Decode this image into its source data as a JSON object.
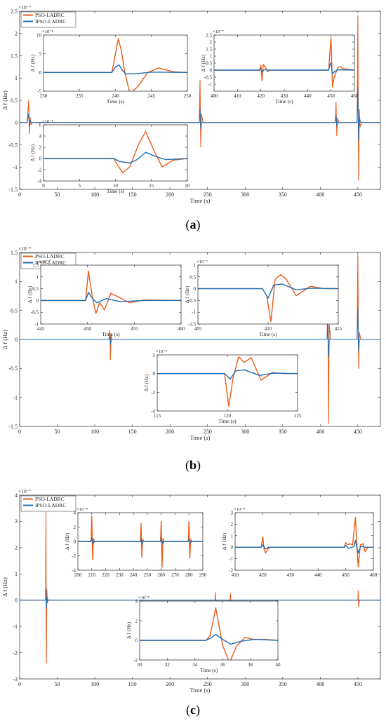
{
  "colors": {
    "pso": "#EA5B1A",
    "ipso": "#1F6FB5",
    "axis": "#262626",
    "bg": "#ffffff"
  },
  "legend_series": [
    "PSO-LADRC",
    "IPSO-LADRC"
  ],
  "chart_data": [
    {
      "id": "a-main",
      "type": "line",
      "caption": "(a)",
      "xlabel": "Time (s)",
      "ylabel": "Δ f (Hz)",
      "yexp": "×10⁻⁷",
      "xlim": [
        0,
        480
      ],
      "ylim": [
        -1.5,
        2.5
      ],
      "xticks": [
        0,
        50,
        100,
        150,
        200,
        250,
        300,
        350,
        400,
        450
      ],
      "yticks": [
        -1.5,
        -1,
        -0.5,
        0,
        0.5,
        1,
        1.5,
        2,
        2.5
      ],
      "legend": "top-left",
      "series": [
        {
          "name": "PSO-LADRC",
          "x": [
            0,
            10,
            12,
            13,
            14,
            15,
            17,
            239,
            240,
            241,
            242,
            244,
            420,
            421,
            422,
            423,
            425,
            449,
            450,
            451,
            452,
            453,
            455,
            480
          ],
          "y": [
            0,
            0,
            0.5,
            -0.25,
            0.12,
            -0.05,
            0,
            0,
            0.95,
            -0.55,
            0.2,
            0,
            0,
            0.45,
            -0.3,
            0.1,
            0,
            0,
            2.4,
            -1.3,
            0.3,
            -0.1,
            0,
            0
          ]
        },
        {
          "name": "IPSO-LADRC",
          "x": [
            0,
            10,
            12,
            13,
            14,
            16,
            239,
            240,
            241,
            242,
            420,
            421,
            422,
            423,
            449,
            450,
            451,
            452,
            454,
            480
          ],
          "y": [
            0,
            0,
            0.2,
            -0.1,
            0.05,
            0,
            0,
            0.3,
            -0.15,
            0,
            0,
            0.15,
            -0.08,
            0,
            0,
            0.8,
            -0.4,
            0.1,
            0,
            0
          ]
        }
      ]
    },
    {
      "id": "a-inset1",
      "type": "line",
      "xlabel": "Time (s)",
      "ylabel": "Δ f (Hz)",
      "yexp": "×10⁻⁸",
      "xlim": [
        230,
        250
      ],
      "ylim": [
        -5,
        10
      ],
      "xticks": [
        230,
        235,
        240,
        245,
        250
      ],
      "yticks": [
        -5,
        0,
        5,
        10
      ],
      "series": [
        {
          "name": "PSO-LADRC",
          "x": [
            230,
            239.5,
            240,
            240.4,
            240.8,
            241.3,
            242,
            243,
            244.5,
            246,
            248,
            250
          ],
          "y": [
            0,
            0,
            5,
            9,
            6,
            0,
            -5.5,
            -4,
            0,
            1.2,
            0.2,
            0
          ]
        },
        {
          "name": "IPSO-LADRC",
          "x": [
            230,
            239.5,
            240,
            240.5,
            241,
            241.5,
            243,
            245,
            250
          ],
          "y": [
            0,
            0,
            1.5,
            2,
            0.5,
            -0.4,
            -0.3,
            0.1,
            0
          ]
        }
      ]
    },
    {
      "id": "a-inset2",
      "type": "line",
      "xlabel": "Time (s)",
      "ylabel": "Δ f (Hz)",
      "yexp": "×10⁻⁷",
      "xlim": [
        400,
        460
      ],
      "ylim": [
        -1.5,
        2.5
      ],
      "xticks": [
        400,
        410,
        420,
        430,
        440,
        450,
        460
      ],
      "yticks": [
        -1,
        -0.5,
        0,
        0.5,
        1,
        1.5,
        2,
        2.5
      ],
      "series": [
        {
          "name": "PSO-LADRC",
          "x": [
            400,
            419.5,
            420,
            420.5,
            421,
            422,
            423,
            424,
            449,
            449.5,
            450,
            450.6,
            451.2,
            452,
            453,
            454,
            455,
            460
          ],
          "y": [
            0,
            0,
            0.35,
            -0.75,
            0.4,
            0.2,
            -0.1,
            0,
            0,
            1.2,
            2.3,
            -1.2,
            -0.6,
            -0.2,
            0.2,
            0.25,
            0.1,
            0
          ]
        },
        {
          "name": "IPSO-LADRC",
          "x": [
            400,
            419.5,
            420,
            420.5,
            421.5,
            422.5,
            449,
            449.5,
            450,
            450.6,
            451.5,
            453,
            460
          ],
          "y": [
            0,
            0,
            0.1,
            -0.15,
            0.05,
            0,
            0,
            0.4,
            0.5,
            -0.25,
            -0.1,
            0.02,
            0
          ]
        }
      ]
    },
    {
      "id": "a-inset3",
      "type": "line",
      "xlabel": "Time (s)",
      "ylabel": "Δ f (Hz)",
      "yexp": "×10⁻⁸",
      "xlim": [
        0,
        20
      ],
      "ylim": [
        -4,
        6
      ],
      "xticks": [
        0,
        5,
        10,
        15,
        20
      ],
      "yticks": [
        -4,
        -2,
        0,
        2,
        4,
        6
      ],
      "series": [
        {
          "name": "PSO-LADRC",
          "x": [
            0,
            9.8,
            10.2,
            11,
            12,
            13.2,
            14.2,
            15.5,
            16.5,
            18,
            20
          ],
          "y": [
            0,
            0,
            -1,
            -2.5,
            -1.5,
            2.5,
            4.8,
            1,
            -1.5,
            -0.3,
            0
          ]
        },
        {
          "name": "IPSO-LADRC",
          "x": [
            0,
            9.8,
            10.5,
            12,
            13,
            14.2,
            15.5,
            17,
            20
          ],
          "y": [
            0,
            0,
            -0.5,
            -0.8,
            -0.2,
            1.1,
            0.4,
            -0.2,
            0
          ]
        }
      ]
    },
    {
      "id": "b-main",
      "type": "line",
      "caption": "(b)",
      "xlabel": "Time (s)",
      "ylabel": "Δ f (Hz)",
      "yexp": "×10⁻⁷",
      "xlim": [
        0,
        480
      ],
      "ylim": [
        -1.5,
        1.5
      ],
      "xticks": [
        0,
        50,
        100,
        150,
        200,
        250,
        300,
        350,
        400,
        450
      ],
      "yticks": [
        -1.5,
        -1,
        -0.5,
        0,
        0.5,
        1,
        1.5
      ],
      "legend": "top-left",
      "series": [
        {
          "name": "PSO-LADRC",
          "x": [
            0,
            119,
            120,
            120.8,
            121.5,
            123,
            409,
            410,
            411,
            412,
            414,
            449,
            450,
            451,
            452,
            454,
            480
          ],
          "y": [
            0,
            0,
            0.15,
            -0.35,
            0.1,
            0,
            0,
            0.75,
            -1.45,
            0.25,
            0,
            0,
            1.45,
            -0.5,
            0.12,
            0,
            0
          ]
        },
        {
          "name": "IPSO-LADRC",
          "x": [
            0,
            119,
            120,
            121,
            122,
            409,
            410,
            411,
            412,
            449,
            450,
            451,
            452,
            480
          ],
          "y": [
            0,
            0,
            0.08,
            -0.08,
            0,
            0,
            0.3,
            -0.3,
            0,
            0,
            0.55,
            -0.2,
            0,
            0
          ]
        }
      ]
    },
    {
      "id": "b-inset1",
      "type": "line",
      "xlabel": "Time (s)",
      "ylabel": "Δ f (Hz)",
      "yexp": "×10⁻⁷",
      "xlim": [
        445,
        460
      ],
      "ylim": [
        -1,
        1.5
      ],
      "xticks": [
        445,
        450,
        455,
        460
      ],
      "yticks": [
        -1,
        -0.5,
        0,
        0.5,
        1,
        1.5
      ],
      "series": [
        {
          "name": "PSO-LADRC",
          "x": [
            445,
            449.8,
            450.1,
            450.5,
            450.9,
            451.3,
            451.8,
            452.5,
            453.3,
            454.5,
            456,
            460
          ],
          "y": [
            0,
            0,
            1.25,
            0.2,
            -0.55,
            -0.1,
            -0.4,
            0.3,
            0.15,
            -0.1,
            0.02,
            0
          ]
        },
        {
          "name": "IPSO-LADRC",
          "x": [
            445,
            449.8,
            450.1,
            450.5,
            451,
            452,
            453.5,
            456,
            460
          ],
          "y": [
            0,
            0,
            0.35,
            0.1,
            -0.1,
            0.08,
            -0.05,
            0,
            0
          ]
        }
      ]
    },
    {
      "id": "b-inset2",
      "type": "line",
      "xlabel": "Time (s)",
      "ylabel": "Δ f (Hz)",
      "yexp": "×10⁻⁷",
      "xlim": [
        405,
        415
      ],
      "ylim": [
        -1.5,
        1
      ],
      "xticks": [
        405,
        410,
        415
      ],
      "yticks": [
        -1.5,
        -1,
        -0.5,
        0,
        0.5,
        1
      ],
      "series": [
        {
          "name": "PSO-LADRC",
          "x": [
            405,
            409.6,
            409.9,
            410.2,
            410.5,
            410.9,
            411.3,
            412,
            413,
            414,
            415
          ],
          "y": [
            0,
            0,
            -0.3,
            -1.4,
            0.4,
            0.6,
            0.4,
            -0.3,
            0.1,
            0,
            0
          ]
        },
        {
          "name": "IPSO-LADRC",
          "x": [
            405,
            409.6,
            410,
            410.4,
            411,
            412,
            413,
            415
          ],
          "y": [
            0,
            0,
            -0.4,
            0.15,
            0.2,
            -0.05,
            0.02,
            0
          ]
        }
      ]
    },
    {
      "id": "b-inset3",
      "type": "line",
      "xlabel": "Time (s)",
      "ylabel": "Δ f (Hz)",
      "yexp": "×10⁻⁸",
      "xlim": [
        115,
        125
      ],
      "ylim": [
        -4,
        2
      ],
      "xticks": [
        115,
        120,
        125
      ],
      "yticks": [
        -4,
        -2,
        0,
        2
      ],
      "series": [
        {
          "name": "PSO-LADRC",
          "x": [
            115,
            119.8,
            120.1,
            120.4,
            120.8,
            121.2,
            121.7,
            122.4,
            123.2,
            124,
            125
          ],
          "y": [
            0,
            0,
            -3.5,
            -0.5,
            1.8,
            1.2,
            1.7,
            -0.7,
            0.1,
            0,
            0
          ]
        },
        {
          "name": "IPSO-LADRC",
          "x": [
            115,
            119.8,
            120.2,
            120.6,
            121.2,
            122.3,
            123.3,
            125
          ],
          "y": [
            0,
            0,
            -0.6,
            0.3,
            0.4,
            -0.2,
            0.05,
            0
          ]
        }
      ]
    },
    {
      "id": "c-main",
      "type": "line",
      "caption": "(c)",
      "xlabel": "Time (s)",
      "ylabel": "Δ f (Hz)",
      "yexp": "×10⁻⁷",
      "xlim": [
        0,
        480
      ],
      "ylim": [
        -3,
        4
      ],
      "xticks": [
        0,
        50,
        100,
        150,
        200,
        250,
        300,
        350,
        400,
        450
      ],
      "yticks": [
        -3,
        -2,
        -1,
        0,
        1,
        2,
        3,
        4
      ],
      "legend": "top-left",
      "series": [
        {
          "name": "PSO-LADRC",
          "x": [
            0,
            34.5,
            35,
            35.6,
            36.2,
            37,
            38,
            260,
            260.5,
            261,
            262,
            280,
            280.5,
            281,
            282,
            450,
            450.5,
            451,
            452,
            480
          ],
          "y": [
            0,
            0,
            3.35,
            -2.4,
            0.4,
            -0.1,
            0,
            0,
            0.3,
            -0.2,
            0,
            0,
            0.25,
            -0.15,
            0,
            0,
            0.35,
            -0.25,
            0,
            0
          ]
        },
        {
          "name": "IPSO-LADRC",
          "x": [
            0,
            34.5,
            35,
            35.6,
            36.5,
            38,
            480
          ],
          "y": [
            0,
            0,
            0.45,
            -0.3,
            0.08,
            0,
            0
          ]
        }
      ]
    },
    {
      "id": "c-inset1",
      "type": "line",
      "xlabel": "",
      "ylabel": "Δ f (Hz)",
      "yexp": "×10⁻⁸",
      "xlim": [
        200,
        290
      ],
      "ylim": [
        -4,
        4
      ],
      "xticks": [
        200,
        210,
        220,
        230,
        240,
        250,
        260,
        270,
        280,
        290
      ],
      "yticks": [
        -4,
        -2,
        0,
        2,
        4
      ],
      "series": [
        {
          "name": "PSO-LADRC",
          "x": [
            200,
            209.5,
            210,
            210.6,
            211.2,
            212,
            245,
            245.5,
            246,
            246.6,
            247.5,
            259.5,
            260,
            260.6,
            261.3,
            262,
            279.5,
            280,
            280.6,
            281.3,
            282,
            290
          ],
          "y": [
            0,
            0,
            3.5,
            -2.5,
            0.4,
            0,
            0,
            2.5,
            -2.2,
            0.3,
            0,
            0,
            2.8,
            -3.6,
            0.4,
            0,
            0,
            2.8,
            -2.3,
            0.3,
            0,
            0
          ]
        },
        {
          "name": "IPSO-LADRC",
          "x": [
            200,
            209.5,
            210,
            211,
            212,
            245,
            245.5,
            246.3,
            247,
            259.5,
            260,
            261,
            262,
            279.5,
            280,
            281,
            282,
            290
          ],
          "y": [
            0,
            0,
            0.5,
            -0.3,
            0,
            0,
            0.3,
            -0.3,
            0,
            0,
            0.4,
            -0.35,
            0,
            0,
            0.3,
            -0.2,
            0,
            0
          ]
        }
      ]
    },
    {
      "id": "c-inset2",
      "type": "line",
      "xlabel": "",
      "ylabel": "Δ f (Hz)",
      "yexp": "×10⁻⁸",
      "xlim": [
        410,
        460
      ],
      "ylim": [
        -2,
        3
      ],
      "xticks": [
        410,
        420,
        430,
        440,
        450,
        460
      ],
      "yticks": [
        -2,
        -1,
        0,
        1,
        2,
        3
      ],
      "series": [
        {
          "name": "PSO-LADRC",
          "x": [
            410,
            419.5,
            420,
            420.5,
            421,
            422,
            423,
            449.5,
            450,
            450.7,
            451.5,
            452.5,
            453.5,
            454.5,
            455.3,
            456.3,
            457,
            458,
            460
          ],
          "y": [
            0,
            0,
            0.9,
            -0.2,
            -0.5,
            -0.1,
            0,
            0,
            0.4,
            0.2,
            0.3,
            0.2,
            2.6,
            -1.7,
            0.2,
            0.3,
            -0.4,
            0,
            0
          ]
        },
        {
          "name": "IPSO-LADRC",
          "x": [
            410,
            419.5,
            420,
            421,
            422,
            449.5,
            450,
            451,
            453,
            453.5,
            454.5,
            455.5,
            457,
            460
          ],
          "y": [
            0,
            0,
            0.2,
            -0.15,
            0,
            0,
            0.15,
            -0.1,
            0.05,
            0.6,
            -0.5,
            0.1,
            0,
            0
          ]
        }
      ]
    },
    {
      "id": "c-inset3",
      "type": "line",
      "xlabel": "Time (s)",
      "ylabel": "Δ f (Hz)",
      "yexp": "×10⁻⁸",
      "xlim": [
        30,
        40
      ],
      "ylim": [
        -2,
        4
      ],
      "xticks": [
        30,
        32,
        34,
        36,
        38,
        40
      ],
      "yticks": [
        -2,
        0,
        2,
        4
      ],
      "series": [
        {
          "name": "PSO-LADRC",
          "x": [
            30,
            34.8,
            35.1,
            35.5,
            36,
            36.5,
            37,
            37.6,
            38.2,
            39,
            40
          ],
          "y": [
            0,
            0,
            0.5,
            3.3,
            -0.5,
            -2.3,
            -0.6,
            0.3,
            0.1,
            0.1,
            0
          ]
        },
        {
          "name": "IPSO-LADRC",
          "x": [
            30,
            34.8,
            35.1,
            35.5,
            36,
            36.6,
            37.3,
            38.3,
            40
          ],
          "y": [
            0,
            0,
            0.2,
            0.6,
            0.1,
            -0.4,
            -0.1,
            0.1,
            0
          ]
        }
      ]
    }
  ]
}
